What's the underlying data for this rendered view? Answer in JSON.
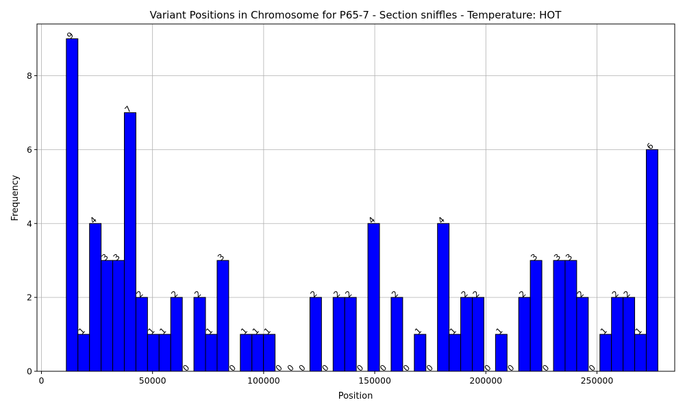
{
  "chart_data": {
    "type": "bar",
    "title": "Variant Positions in Chromosome for P65-7 - Section sniffles - Temperature: HOT",
    "xlabel": "Position",
    "ylabel": "Frequency",
    "xlim": [
      -2000,
      285000
    ],
    "ylim": [
      0,
      9.4
    ],
    "xticks": [
      0,
      50000,
      100000,
      150000,
      200000,
      250000
    ],
    "xtick_labels": [
      "0",
      "50000",
      "100000",
      "150000",
      "200000",
      "250000"
    ],
    "yticks": [
      0,
      2,
      4,
      6,
      8
    ],
    "ytick_labels": [
      "0",
      "2",
      "4",
      "6",
      "8"
    ],
    "grid": true,
    "bar_color": "#0000ff",
    "edge_color": "#000000",
    "bin_start": 11200,
    "bin_width": 5220,
    "values": [
      9,
      1,
      4,
      3,
      3,
      7,
      2,
      1,
      1,
      2,
      0,
      2,
      1,
      3,
      0,
      1,
      1,
      1,
      0,
      0,
      0,
      2,
      0,
      2,
      2,
      0,
      4,
      0,
      2,
      0,
      1,
      0,
      4,
      1,
      2,
      2,
      0,
      1,
      0,
      2,
      3,
      0,
      3,
      3,
      2,
      0,
      1,
      2,
      2,
      1,
      6
    ]
  }
}
